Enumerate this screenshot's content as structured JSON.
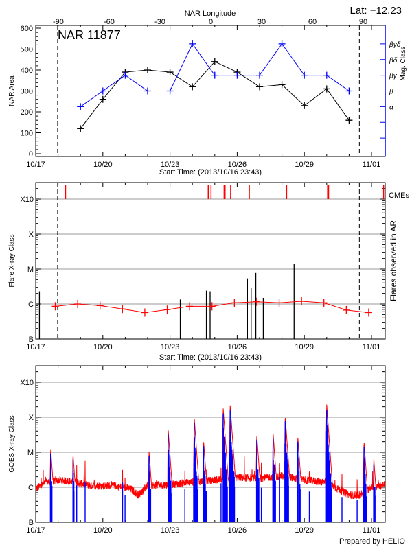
{
  "lat_label": "Lat: −12.23",
  "footer": "Prepared by HELIO",
  "colors": {
    "area": "#000000",
    "mag_class": "#0000ff",
    "flares": "#000000",
    "flare_trend": "#ff0000",
    "cme": "#ff0000",
    "goes_long": "#ff0000",
    "goes_short": "#0000ff",
    "grid": "#999999"
  },
  "chart_data": [
    {
      "type": "line",
      "title": "NAR 11877",
      "top_xlabel": "NAR Longitude",
      "top_xticks": [
        -90,
        -60,
        -30,
        0,
        30,
        60,
        90
      ],
      "xlabel": "Start Time: (2013/10/16 23:43)",
      "xticks": [
        "10/17",
        "10/20",
        "10/23",
        "10/26",
        "10/29",
        "11/01"
      ],
      "ylabel": "NAR Area",
      "ylim": [
        0,
        600
      ],
      "yticks": [
        0,
        100,
        200,
        300,
        400,
        500,
        600
      ],
      "y2label": "Mag. Class",
      "mag_class_levels": [
        "α",
        "β",
        "βγ",
        "βδ",
        "βγδ"
      ],
      "limb_crossings": [
        "10/17 23:30",
        "10/31 11:00"
      ],
      "dates": [
        "10/19",
        "10/20",
        "10/21",
        "10/22",
        "10/23",
        "10/24",
        "10/25",
        "10/26",
        "10/27",
        "10/28",
        "10/29",
        "10/30",
        "10/31"
      ],
      "series": [
        {
          "values": [
            120,
            260,
            390,
            400,
            390,
            320,
            440,
            390,
            320,
            330,
            230,
            310,
            160
          ]
        },
        {
          "values": [
            "α",
            "β",
            "βγ",
            "β",
            "β",
            "βγδ",
            "βγ",
            "βγ",
            "βγ",
            "βγδ",
            "βγ",
            "βγ",
            "β"
          ]
        }
      ]
    },
    {
      "type": "bar",
      "xlabel": "Start Time: (2013/10/16 23:43)",
      "xticks": [
        "10/17",
        "10/20",
        "10/23",
        "10/26",
        "10/29",
        "11/01"
      ],
      "ylabel": "Flare X-ray Class",
      "y2label": "Flares observed in AR",
      "yscale": "log",
      "yticks": [
        "B",
        "C",
        "M",
        "X",
        "X10"
      ],
      "grid": true,
      "cme_label": "CMEs",
      "limb_crossings": [
        "10/17 23:30",
        "10/31 11:00"
      ],
      "flares": [
        {
          "t": "10/17 04:00",
          "flux": 2.3e-06
        },
        {
          "t": "10/23 11:00",
          "flux": 1.35e-06
        },
        {
          "t": "10/24 15:00",
          "flux": 2.4e-06
        },
        {
          "t": "10/24 19:00",
          "flux": 2.3e-06
        },
        {
          "t": "10/26 11:00",
          "flux": 5.4e-06
        },
        {
          "t": "10/26 15:00",
          "flux": 2.9e-06
        },
        {
          "t": "10/26 20:00",
          "flux": 7.7e-06
        },
        {
          "t": "10/27 04:00",
          "flux": 1.5e-06
        },
        {
          "t": "10/28 13:00",
          "flux": 1.4e-05
        }
      ],
      "daily_mean": {
        "t": [
          "10/17 21:00",
          "10/18 21:00",
          "10/19 21:00",
          "10/20 21:00",
          "10/21 21:00",
          "10/22 21:00",
          "10/23 21:00",
          "10/24 21:00",
          "10/25 21:00",
          "10/26 21:00",
          "10/27 21:00",
          "10/28 21:00",
          "10/29 21:00",
          "10/30 21:00",
          "10/31 21:00"
        ],
        "flux": [
          8.6e-07,
          1e-06,
          9e-07,
          7.2e-07,
          5.7e-07,
          6.9e-07,
          8.6e-07,
          8.6e-07,
          1.08e-06,
          1.16e-06,
          1.08e-06,
          1.2e-06,
          1.08e-06,
          6.7e-07,
          5.7e-07
        ]
      },
      "cmes": [
        "10/18 08:00",
        "10/24 17:00",
        "10/24 20:00",
        "10/25 10:00",
        "10/25 11:00",
        "10/25 17:00",
        "10/26 13:00",
        "10/28 05:00",
        "10/30 01:00",
        "10/30 02:00",
        "11/01 13:00"
      ]
    },
    {
      "type": "line",
      "xticks": [
        "10/17",
        "10/20",
        "10/23",
        "10/26",
        "10/29",
        "11/01"
      ],
      "ylabel": "GOES X-ray Class",
      "yscale": "log",
      "yticks": [
        "B",
        "C",
        "M",
        "X",
        "X10"
      ],
      "grid": true,
      "background": {
        "t": [
          "10/17 00:00",
          "10/17 12:00",
          "10/18 00:00",
          "10/18 12:00",
          "10/19 12:00",
          "10/20 12:00",
          "10/21 06:00",
          "10/21 14:00",
          "10/22 00:00",
          "10/23 00:00",
          "10/24 00:00",
          "10/25 00:00",
          "10/26 00:00",
          "10/27 00:00",
          "10/28 00:00",
          "10/29 00:00",
          "10/30 00:00",
          "10/30 12:00",
          "10/31 00:00",
          "10/31 12:00",
          "11/01 00:00",
          "11/01 14:00"
        ],
        "flux": [
          9e-07,
          1.4e-06,
          1.6e-06,
          1.5e-06,
          1.1e-06,
          1.1e-06,
          9e-07,
          6e-07,
          1.1e-06,
          1.2e-06,
          1.4e-06,
          1.6e-06,
          1.9e-06,
          1.8e-06,
          2.1e-06,
          1.6e-06,
          1.4e-06,
          9e-07,
          6e-07,
          6e-07,
          1e-06,
          1.2e-06
        ]
      },
      "peaks": [
        {
          "t": "10/17 16:00",
          "flux": 1.3e-05
        },
        {
          "t": "10/18 16:00",
          "flux": 8.7e-06
        },
        {
          "t": "10/22 01:30",
          "flux": 1.08e-05
        },
        {
          "t": "10/22 22:00",
          "flux": 4.5e-05
        },
        {
          "t": "10/24 02:00",
          "flux": 9.6e-05
        },
        {
          "t": "10/24 12:00",
          "flux": 2.1e-05
        },
        {
          "t": "10/25 09:00",
          "flux": 0.00018
        },
        {
          "t": "10/25 16:30",
          "flux": 0.00022
        },
        {
          "t": "10/26 21:00",
          "flux": 3.2e-05
        },
        {
          "t": "10/27 14:30",
          "flux": 3.6e-05
        },
        {
          "t": "10/28 03:30",
          "flux": 0.000108
        },
        {
          "t": "10/28 17:00",
          "flux": 2.8e-05
        },
        {
          "t": "10/30 00:00",
          "flux": 0.00023
        },
        {
          "t": "10/31 16:00",
          "flux": 2e-05
        },
        {
          "t": "11/01 02:30",
          "flux": 6.4e-06
        }
      ]
    }
  ]
}
